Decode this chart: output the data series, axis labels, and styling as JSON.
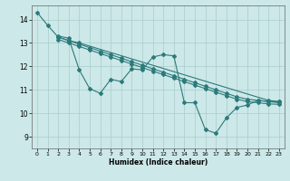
{
  "title": "",
  "xlabel": "Humidex (Indice chaleur)",
  "xlim": [
    -0.5,
    23.5
  ],
  "ylim": [
    8.5,
    14.6
  ],
  "yticks": [
    9,
    10,
    11,
    12,
    13,
    14
  ],
  "xticks": [
    0,
    1,
    2,
    3,
    4,
    5,
    6,
    7,
    8,
    9,
    10,
    11,
    12,
    13,
    14,
    15,
    16,
    17,
    18,
    19,
    20,
    21,
    22,
    23
  ],
  "bg_color": "#cce8e8",
  "line_color": "#2d7a7a",
  "grid_color": "#aacccc",
  "lines": [
    {
      "x": [
        0,
        1,
        2,
        3,
        4,
        22,
        23
      ],
      "y": [
        14.3,
        13.75,
        13.25,
        13.1,
        13.0,
        10.55,
        10.5
      ]
    },
    {
      "x": [
        2,
        3,
        4,
        5,
        6,
        7,
        8,
        9,
        10,
        11,
        12,
        13,
        14,
        15,
        16,
        17,
        18,
        19,
        20,
        21,
        22,
        23
      ],
      "y": [
        13.3,
        13.2,
        11.85,
        11.05,
        10.85,
        11.45,
        11.35,
        11.9,
        11.85,
        12.4,
        12.5,
        12.45,
        10.45,
        10.45,
        9.3,
        9.15,
        9.8,
        10.25,
        10.35,
        10.55,
        10.5,
        10.5
      ]
    },
    {
      "x": [
        2,
        3,
        4,
        5,
        6,
        7,
        8,
        9,
        10,
        11,
        12,
        13,
        14,
        15,
        16,
        17,
        18,
        19,
        20,
        21,
        22,
        23
      ],
      "y": [
        13.25,
        13.1,
        12.95,
        12.8,
        12.65,
        12.5,
        12.35,
        12.2,
        12.05,
        11.9,
        11.75,
        11.6,
        11.45,
        11.3,
        11.15,
        11.0,
        10.85,
        10.7,
        10.6,
        10.55,
        10.5,
        10.45
      ]
    },
    {
      "x": [
        2,
        3,
        4,
        5,
        6,
        7,
        8,
        9,
        10,
        11,
        12,
        13,
        14,
        15,
        16,
        17,
        18,
        19,
        20,
        21,
        22,
        23
      ],
      "y": [
        13.15,
        13.0,
        12.85,
        12.7,
        12.55,
        12.4,
        12.25,
        12.1,
        11.95,
        11.8,
        11.65,
        11.5,
        11.35,
        11.2,
        11.05,
        10.9,
        10.75,
        10.6,
        10.5,
        10.45,
        10.4,
        10.38
      ]
    }
  ]
}
